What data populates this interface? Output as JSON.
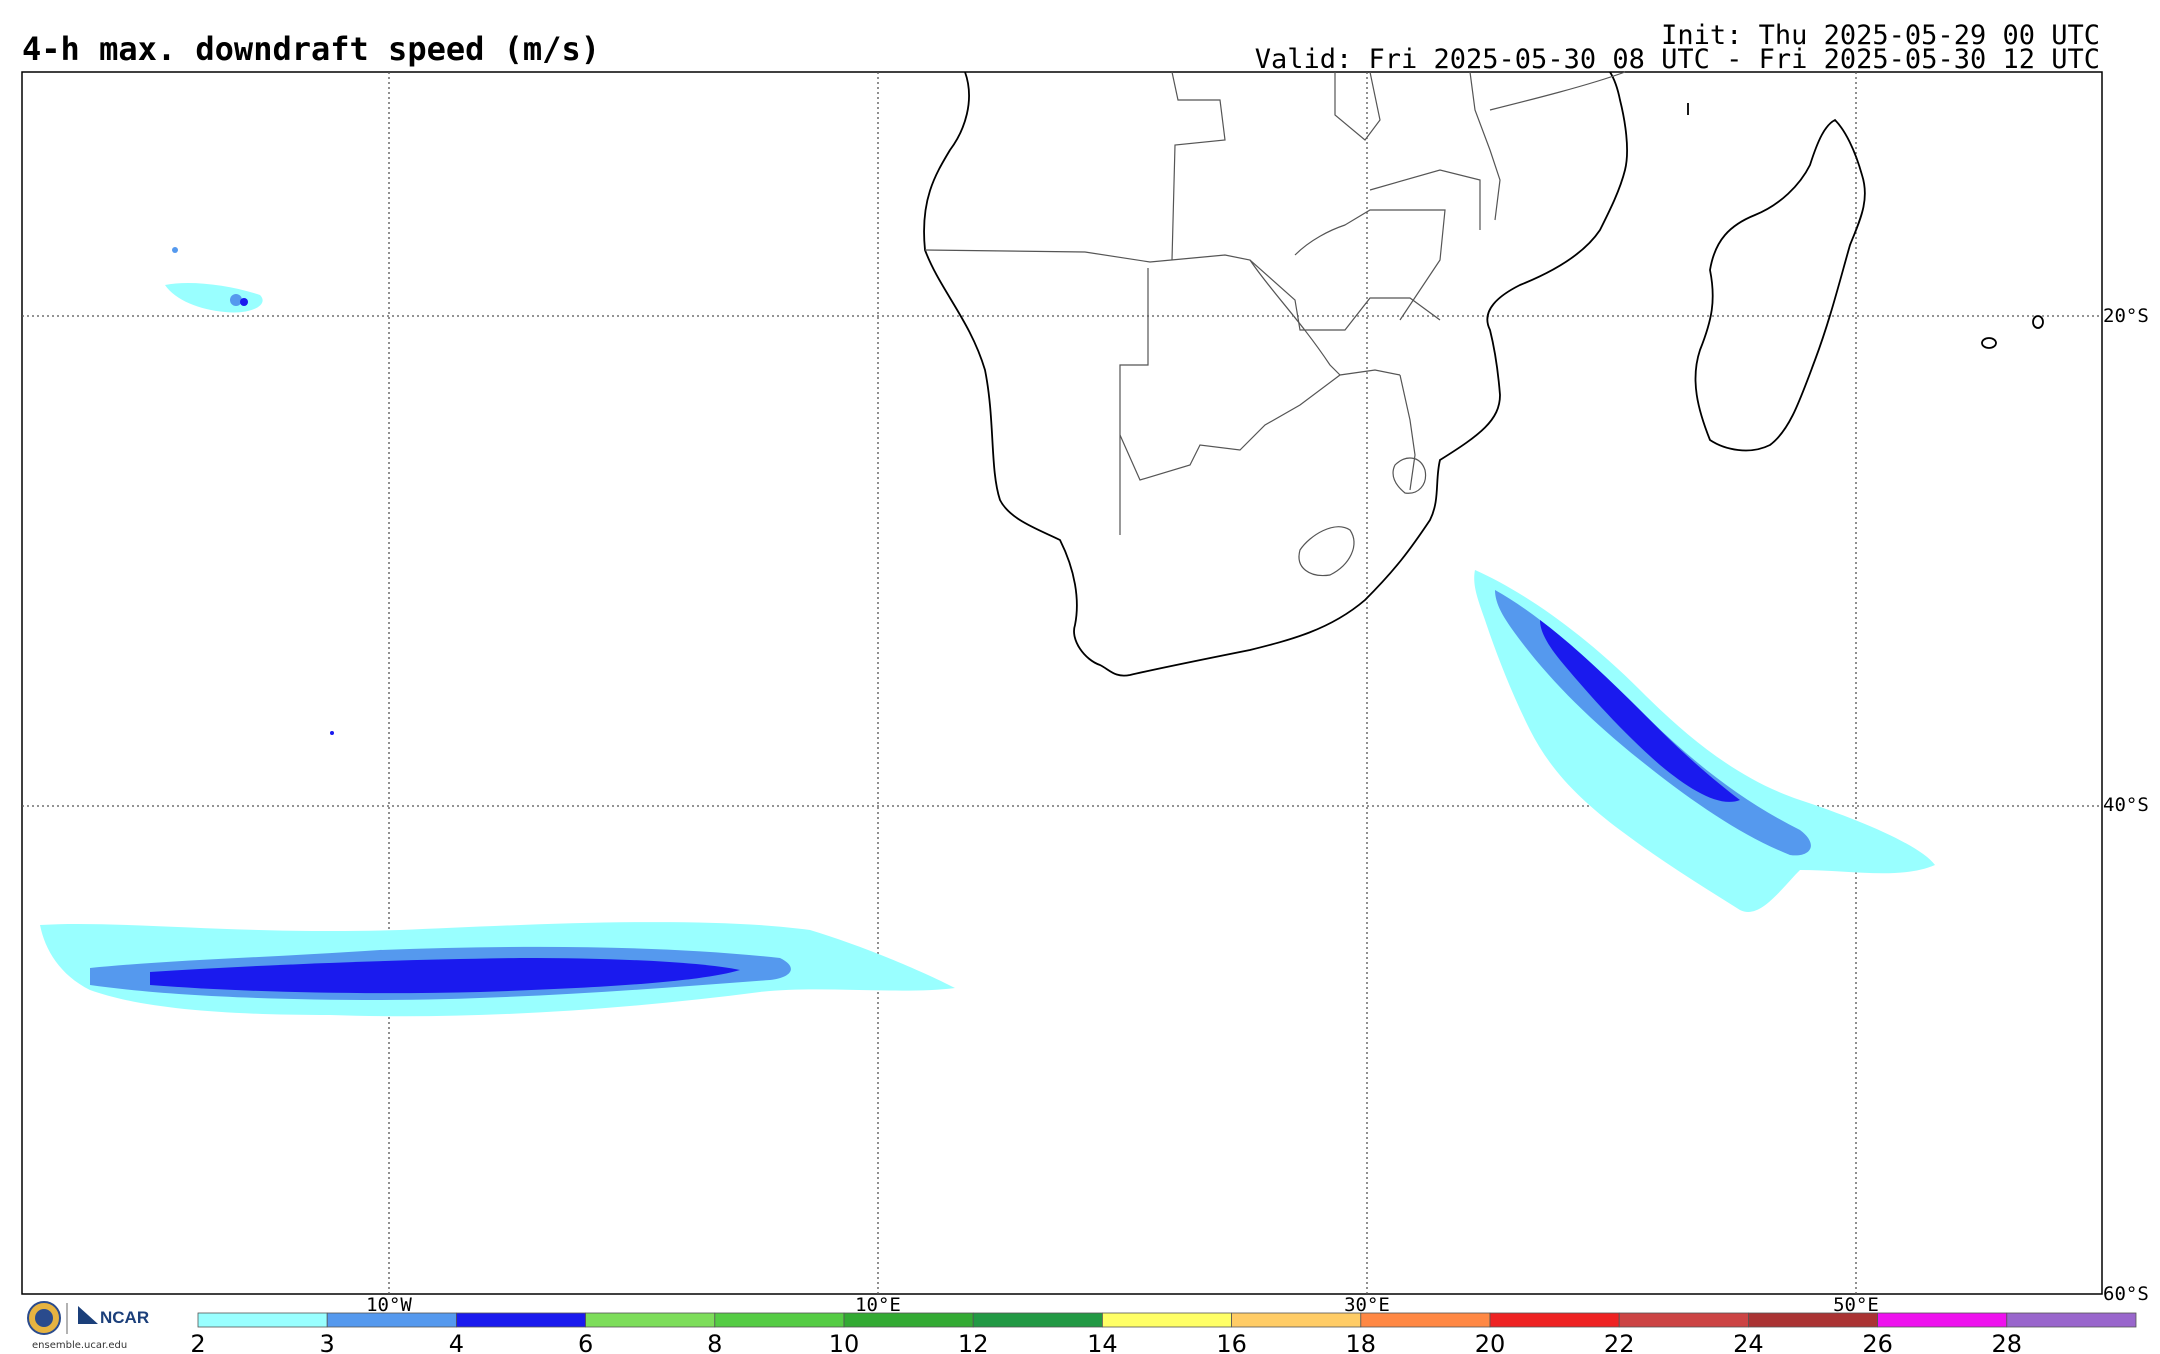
{
  "header": {
    "title": "4-h max. downdraft speed (m/s)",
    "init": "Init: Thu 2025-05-29 00 UTC",
    "valid": "Valid: Fri 2025-05-30 08 UTC - Fri 2025-05-30 12 UTC"
  },
  "map": {
    "lon_labels": [
      "10°W",
      "10°E",
      "30°E",
      "50°E"
    ],
    "lat_labels": [
      "20°S",
      "40°S",
      "60°S"
    ]
  },
  "colorbar": {
    "ticks": [
      "2",
      "3",
      "4",
      "6",
      "8",
      "10",
      "12",
      "14",
      "16",
      "18",
      "20",
      "22",
      "24",
      "26",
      "28"
    ],
    "colors": [
      "#99ffff",
      "#5599ee",
      "#1a1aee",
      "#7ddd5a",
      "#55cc44",
      "#33aa33",
      "#229944",
      "#ffff66",
      "#ffcc66",
      "#ff8844",
      "#ee2222",
      "#cc4444",
      "#aa3333",
      "#ee11ee",
      "#9966cc"
    ]
  },
  "footer": {
    "logo_text": "NCAR",
    "url": "ensemble.ucar.edu"
  }
}
